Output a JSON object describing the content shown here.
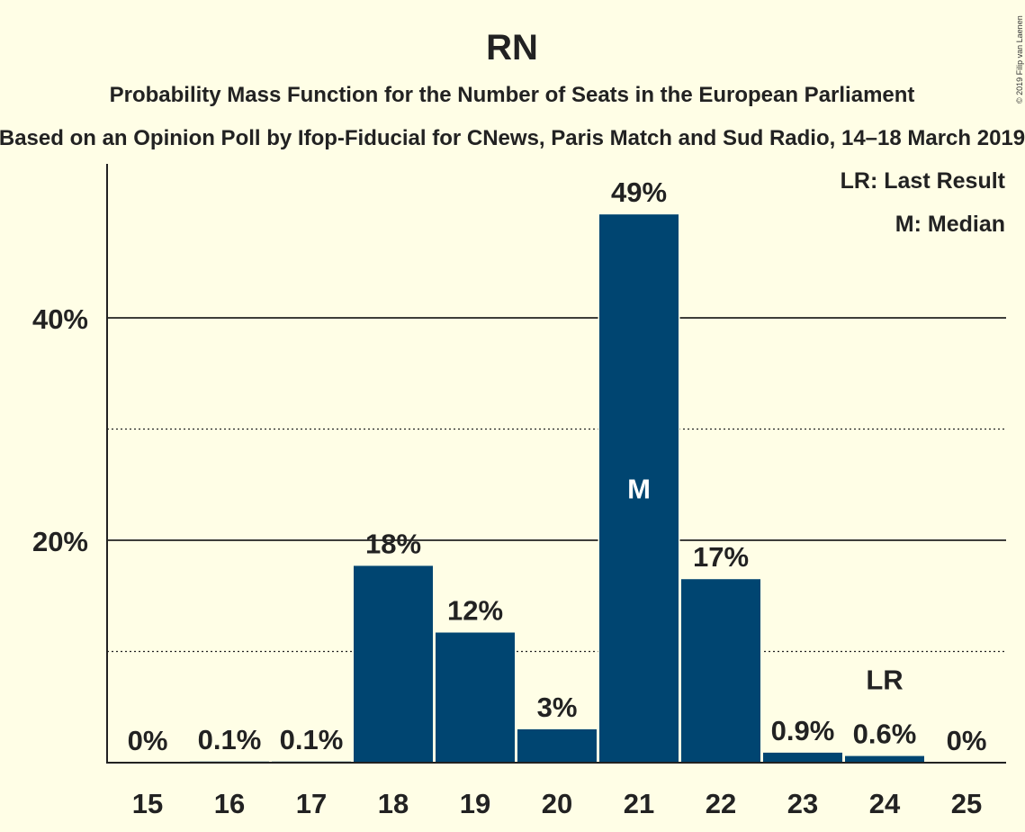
{
  "chart_data": {
    "type": "bar",
    "title": "RN",
    "subtitle": "Probability Mass Function for the Number of Seats in the European Parliament",
    "subtitle2": "Based on an Opinion Poll by Ifop-Fiducial for CNews, Paris Match and Sud Radio, 14–18 March 2019",
    "copyright": "© 2019 Filip van Laenen",
    "legend": [
      "LR: Last Result",
      "M: Median"
    ],
    "categories": [
      "15",
      "16",
      "17",
      "18",
      "19",
      "20",
      "21",
      "22",
      "23",
      "24",
      "25"
    ],
    "values": [
      0,
      0.1,
      0.1,
      17.7,
      11.7,
      3.0,
      49.3,
      16.5,
      0.9,
      0.6,
      0
    ],
    "labels": [
      "0%",
      "0.1%",
      "0.1%",
      "18%",
      "12%",
      "3%",
      "49%",
      "17%",
      "0.9%",
      "0.6%",
      "0%"
    ],
    "y_ticks": [
      {
        "value": 20,
        "label": "20%"
      },
      {
        "value": 40,
        "label": "40%"
      }
    ],
    "minor_gridlines": [
      10,
      30
    ],
    "ylim": [
      0,
      54
    ],
    "median_category": "21",
    "median_marker": "M",
    "last_result_category": "24",
    "last_result_marker": "LR",
    "bar_color": "#004571",
    "background": "#FFFEE6"
  }
}
